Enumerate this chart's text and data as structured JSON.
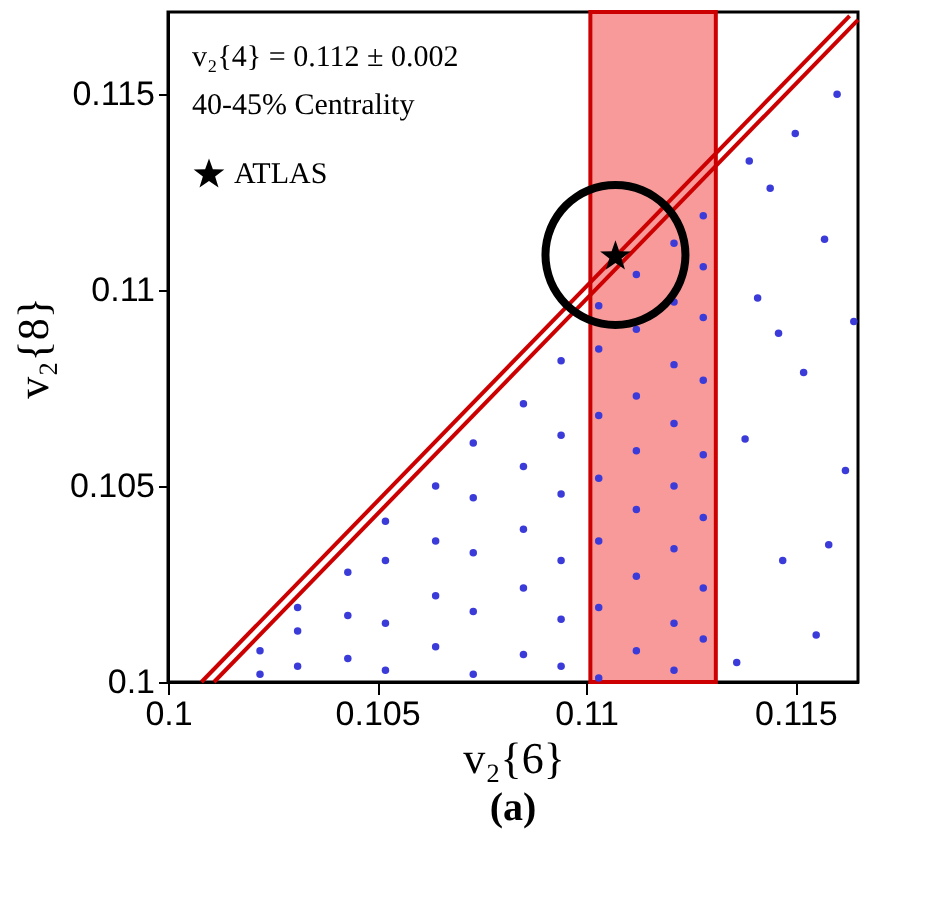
{
  "chart_data": {
    "type": "scatter",
    "xlabel": "v₂{6}",
    "ylabel": "v₂{8}",
    "xlim": [
      0.1,
      0.1165
    ],
    "ylim": [
      0.1,
      0.1171
    ],
    "xticks": [
      0.1,
      0.105,
      0.11,
      0.115
    ],
    "yticks": [
      0.1,
      0.105,
      0.11,
      0.115
    ],
    "grid": false,
    "legend": "top left",
    "annotations": [
      "v₂{4} = 0.112 ± 0.002",
      "40-45% Centrality",
      "(a)"
    ],
    "bands": [
      {
        "axis": "x",
        "from": 0.1101,
        "to": 0.1131,
        "color": "#f99a9a"
      }
    ],
    "series": [
      {
        "color": "#3b3bd9",
        "marker": "circle",
        "x": [
          0.1022,
          0.1022,
          0.1031,
          0.1031,
          0.1031,
          0.1043,
          0.1043,
          0.1043,
          0.1052,
          0.1052,
          0.1052,
          0.1052,
          0.1064,
          0.1064,
          0.1064,
          0.1064,
          0.1073,
          0.1073,
          0.1073,
          0.1073,
          0.1073,
          0.1085,
          0.1085,
          0.1085,
          0.1085,
          0.1085,
          0.1094,
          0.1094,
          0.1094,
          0.1094,
          0.1094,
          0.1094,
          0.1103,
          0.1103,
          0.1103,
          0.1103,
          0.1103,
          0.1103,
          0.1103,
          0.1112,
          0.1112,
          0.1112,
          0.1112,
          0.1112,
          0.1112,
          0.1112,
          0.1121,
          0.1121,
          0.1121,
          0.1121,
          0.1121,
          0.1121,
          0.1121,
          0.1121,
          0.1128,
          0.1128,
          0.1128,
          0.1128,
          0.1128,
          0.1128,
          0.1128,
          0.1128,
          0.1136,
          0.1138,
          0.1141,
          0.1144,
          0.1147,
          0.115,
          0.1152,
          0.1155,
          0.1157,
          0.116,
          0.1162,
          0.1164,
          0.1139,
          0.1146,
          0.1158
        ],
        "values": [
          0.1002,
          0.1008,
          0.1004,
          0.1013,
          0.1019,
          0.1006,
          0.1017,
          0.1028,
          0.1003,
          0.1015,
          0.1031,
          0.1041,
          0.1009,
          0.1022,
          0.1036,
          0.105,
          0.1002,
          0.1018,
          0.1033,
          0.1047,
          0.1061,
          0.1007,
          0.1024,
          0.1039,
          0.1055,
          0.1071,
          0.1004,
          0.1016,
          0.1031,
          0.1048,
          0.1063,
          0.1082,
          0.1001,
          0.1019,
          0.1036,
          0.1052,
          0.1068,
          0.1085,
          0.1096,
          0.1008,
          0.1027,
          0.1044,
          0.1059,
          0.1073,
          0.109,
          0.1104,
          0.1003,
          0.1015,
          0.1034,
          0.105,
          0.1066,
          0.1081,
          0.1097,
          0.1112,
          0.1011,
          0.1024,
          0.1042,
          0.1058,
          0.1077,
          0.1093,
          0.1106,
          0.1119,
          0.1005,
          0.1062,
          0.1098,
          0.1126,
          0.1031,
          0.114,
          0.1079,
          0.1012,
          0.1113,
          0.115,
          0.1054,
          0.1092,
          0.1133,
          0.1089,
          0.1035
        ]
      },
      {
        "type": "line",
        "color": "#cc0000",
        "line_style": "solid",
        "x": [
          0.1008,
          0.1163
        ],
        "values": [
          0.1,
          0.117
        ]
      },
      {
        "type": "line",
        "color": "#cc0000",
        "line_style": "solid",
        "x": [
          0.1011,
          0.1165
        ],
        "values": [
          0.1,
          0.1169
        ]
      },
      {
        "type": "scatter",
        "name": "ATLAS",
        "color": "#000000",
        "marker": "star",
        "x": [
          0.1107
        ],
        "values": [
          0.1109
        ]
      }
    ]
  }
}
